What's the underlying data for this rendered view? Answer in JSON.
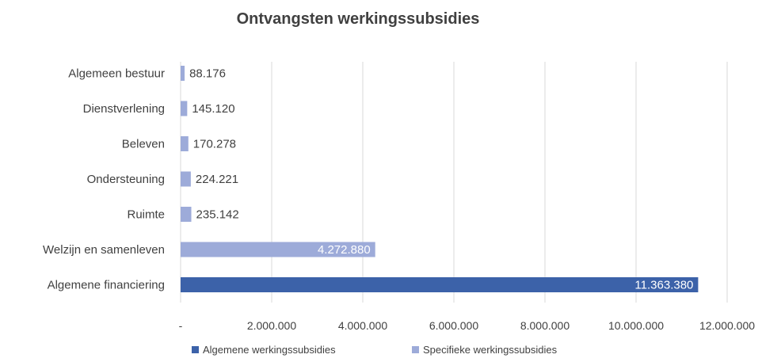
{
  "chart_data": {
    "type": "bar",
    "orientation": "horizontal",
    "title": "Ontvangsten werkingssubsidies",
    "categories": [
      "Algemeen bestuur",
      "Dienstverlening",
      "Beleven",
      "Ondersteuning",
      "Ruimte",
      "Welzijn en samenleven",
      "Algemene financiering"
    ],
    "series": [
      {
        "name": "Algemene werkingssubsidies",
        "color": "#3c62a9",
        "values": [
          0,
          0,
          0,
          0,
          0,
          0,
          11363380
        ]
      },
      {
        "name": "Specifieke werkingssubsidies",
        "color": "#9dabd9",
        "values": [
          88176,
          145120,
          170278,
          224221,
          235142,
          4272880,
          0
        ]
      }
    ],
    "data_labels": [
      "88.176",
      "145.120",
      "170.278",
      "224.221",
      "235.142",
      "4.272.880",
      "11.363.380"
    ],
    "xlim": [
      0,
      12000000
    ],
    "x_ticks": [
      0,
      2000000,
      4000000,
      6000000,
      8000000,
      10000000,
      12000000
    ],
    "x_tick_labels": [
      "-",
      "2.000.000",
      "4.000.000",
      "6.000.000",
      "8.000.000",
      "10.000.000",
      "12.000.000"
    ],
    "grid": "vertical",
    "legend_position": "bottom"
  }
}
